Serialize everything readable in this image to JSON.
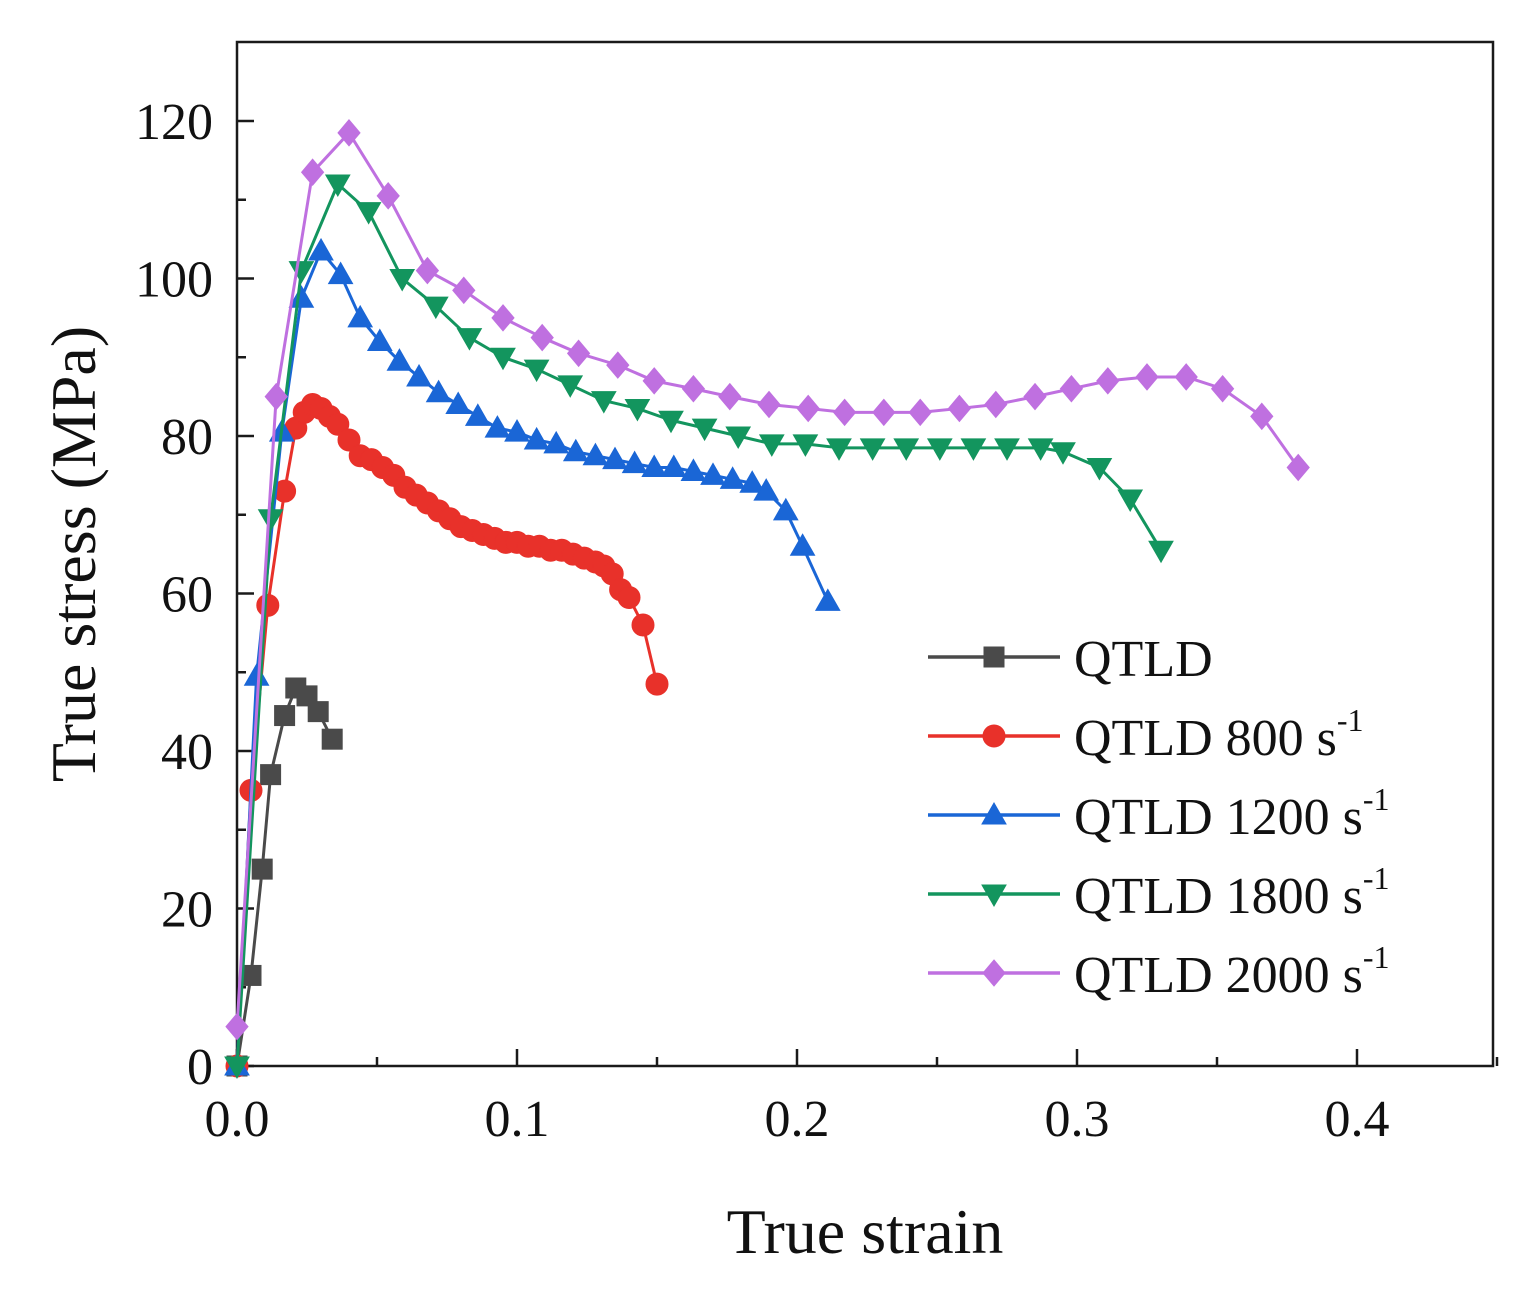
{
  "chart_data": {
    "type": "line",
    "title": "",
    "xlabel": "True strain",
    "ylabel": "True stress (MPa)",
    "xlim": [
      0,
      0.45
    ],
    "ylim": [
      0,
      130
    ],
    "xticks": [
      0.0,
      0.1,
      0.2,
      0.3,
      0.4
    ],
    "xtick_labels": [
      "0.0",
      "0.1",
      "0.2",
      "0.3",
      "0.4"
    ],
    "yticks": [
      0,
      20,
      40,
      60,
      80,
      100,
      120
    ],
    "ytick_labels": [
      "0",
      "20",
      "40",
      "60",
      "80",
      "100",
      "120"
    ],
    "grid": false,
    "legend_position": "bottom-right",
    "series": [
      {
        "name": "QTLD",
        "unit_exponent": "",
        "color": "#4a4a4a",
        "marker": "square",
        "x": [
          0.0,
          0.005,
          0.009,
          0.012,
          0.017,
          0.021,
          0.025,
          0.029,
          0.034
        ],
        "y": [
          0,
          11.5,
          25,
          37,
          44.5,
          48,
          47,
          45,
          41.5
        ]
      },
      {
        "name": "QTLD 800 s",
        "unit_exponent": "-1",
        "color": "#e8312a",
        "marker": "circle",
        "x": [
          0.0,
          0.005,
          0.011,
          0.017,
          0.021,
          0.024,
          0.027,
          0.03,
          0.033,
          0.036,
          0.04,
          0.044,
          0.048,
          0.052,
          0.056,
          0.06,
          0.064,
          0.068,
          0.072,
          0.076,
          0.08,
          0.084,
          0.088,
          0.092,
          0.096,
          0.1,
          0.104,
          0.108,
          0.112,
          0.116,
          0.12,
          0.124,
          0.128,
          0.131,
          0.134,
          0.137,
          0.14,
          0.145,
          0.15
        ],
        "y": [
          0,
          35,
          58.5,
          73,
          81,
          83,
          84,
          83.5,
          82.5,
          81.5,
          79.5,
          77.5,
          77,
          76,
          75,
          73.5,
          72.5,
          71.5,
          70.5,
          69.5,
          68.5,
          68,
          67.5,
          67,
          66.5,
          66.5,
          66,
          66,
          65.5,
          65.5,
          65,
          64.5,
          64,
          63.5,
          62.5,
          60.5,
          59.5,
          56,
          48.5
        ]
      },
      {
        "name": "QTLD 1200 s",
        "unit_exponent": "-1",
        "color": "#1a66d6",
        "marker": "triangle-up",
        "x": [
          0.0,
          0.007,
          0.016,
          0.023,
          0.03,
          0.037,
          0.044,
          0.051,
          0.058,
          0.065,
          0.072,
          0.079,
          0.086,
          0.093,
          0.1,
          0.107,
          0.114,
          0.121,
          0.128,
          0.135,
          0.142,
          0.149,
          0.156,
          0.163,
          0.17,
          0.177,
          0.184,
          0.189,
          0.196,
          0.202,
          0.211
        ],
        "y": [
          0,
          49.5,
          80.5,
          97.5,
          103.5,
          100.5,
          95,
          92,
          89.5,
          87.5,
          85.5,
          84,
          82.5,
          81,
          80.5,
          79.5,
          79,
          78,
          77.5,
          77,
          76.5,
          76,
          76,
          75.5,
          75,
          74.5,
          74,
          73,
          70.5,
          66,
          59
        ]
      },
      {
        "name": "QTLD 1800 s",
        "unit_exponent": "-1",
        "color": "#13955e",
        "marker": "triangle-down",
        "x": [
          0.0,
          0.012,
          0.023,
          0.036,
          0.047,
          0.059,
          0.071,
          0.083,
          0.095,
          0.107,
          0.119,
          0.131,
          0.143,
          0.155,
          0.167,
          0.179,
          0.191,
          0.203,
          0.215,
          0.227,
          0.239,
          0.251,
          0.263,
          0.275,
          0.287,
          0.295,
          0.308,
          0.319,
          0.33
        ],
        "y": [
          0,
          69.5,
          101,
          112,
          108.5,
          100,
          96.5,
          92.5,
          90,
          88.5,
          86.5,
          84.5,
          83.5,
          82,
          81,
          80,
          79,
          79,
          78.5,
          78.5,
          78.5,
          78.5,
          78.5,
          78.5,
          78.5,
          78,
          76,
          72,
          65.5
        ]
      },
      {
        "name": "QTLD 2000 s",
        "unit_exponent": "-1",
        "color": "#bf70e0",
        "marker": "diamond",
        "x": [
          0.0,
          0.014,
          0.027,
          0.04,
          0.054,
          0.068,
          0.081,
          0.095,
          0.109,
          0.122,
          0.136,
          0.149,
          0.163,
          0.176,
          0.19,
          0.204,
          0.217,
          0.231,
          0.244,
          0.258,
          0.271,
          0.285,
          0.298,
          0.311,
          0.325,
          0.339,
          0.352,
          0.366,
          0.379
        ],
        "y": [
          5,
          85,
          113.5,
          118.5,
          110.5,
          101,
          98.5,
          95,
          92.5,
          90.5,
          89,
          87,
          86,
          85,
          84,
          83.5,
          83,
          83,
          83,
          83.5,
          84,
          85,
          86,
          87,
          87.5,
          87.5,
          86,
          82.5,
          76
        ]
      }
    ]
  }
}
